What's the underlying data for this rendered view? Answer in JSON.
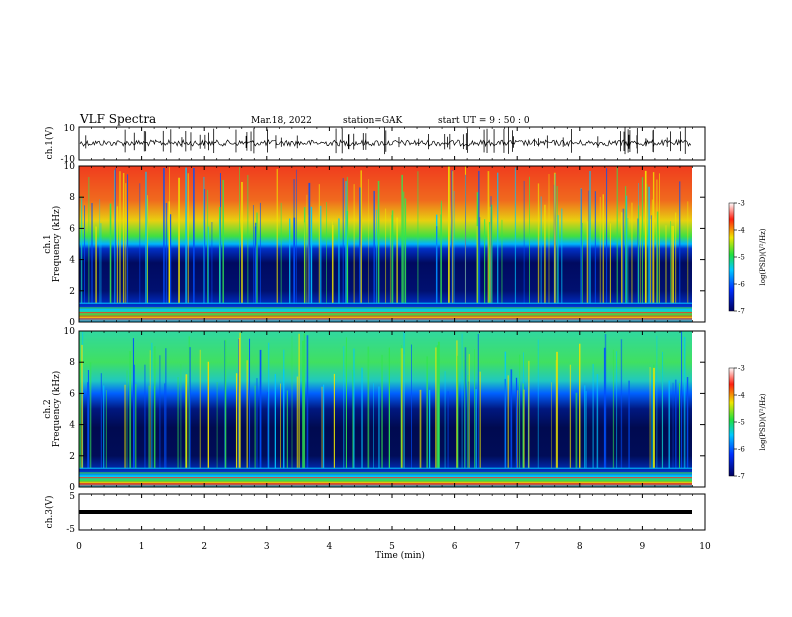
{
  "header": {
    "title": "VLF Spectra",
    "date": "Mar.18, 2022",
    "station": "station=GAK",
    "start_ut": "start UT =  9 : 50 : 0"
  },
  "chart_data": [
    {
      "type": "line",
      "panel": "ch1-waveform",
      "ylabel": "ch.1(V)",
      "ylim": [
        -10,
        10
      ],
      "ytick_labels": [
        "10",
        "-10"
      ],
      "xlim": [
        0,
        10
      ]
    },
    {
      "type": "heatmap",
      "panel": "ch1-spectrogram",
      "ylabel_top": "ch.1",
      "ylabel": "Frequency (kHz)",
      "ylim": [
        0,
        10
      ],
      "ytick_labels": [
        "0",
        "2",
        "4",
        "6",
        "8",
        "10"
      ],
      "xlim": [
        0,
        10
      ],
      "colorbar": {
        "label": "log(PSD)(V²/Hz)",
        "range": [
          -7,
          -3
        ],
        "tick_labels": [
          "-3",
          "-4",
          "-5",
          "-6",
          "-7"
        ]
      }
    },
    {
      "type": "heatmap",
      "panel": "ch2-spectrogram",
      "ylabel_top": "ch.2",
      "ylabel": "Frequency (kHz)",
      "ylim": [
        0,
        10
      ],
      "ytick_labels": [
        "0",
        "2",
        "4",
        "6",
        "8",
        "10"
      ],
      "xlim": [
        0,
        10
      ],
      "colorbar": {
        "label": "log(PSD)(V²/Hz)",
        "range": [
          -7,
          -3
        ],
        "tick_labels": [
          "-3",
          "-4",
          "-5",
          "-6",
          "-7"
        ]
      }
    },
    {
      "type": "line",
      "panel": "ch3-waveform",
      "ylabel": "ch.3(V)",
      "ylim": [
        -5,
        5
      ],
      "ytick_labels": [
        "5",
        "-5"
      ],
      "xlim": [
        0,
        10
      ],
      "level": 0
    }
  ],
  "xaxis": {
    "label": "Time (min)",
    "tick_labels": [
      "0",
      "1",
      "2",
      "3",
      "4",
      "5",
      "6",
      "7",
      "8",
      "9",
      "10"
    ]
  },
  "colors": {
    "dark_blue": "#00003c",
    "blue": "#0050ff",
    "cyan": "#00c8ff",
    "green": "#32e650",
    "yellow": "#f0e600",
    "red": "#f03c1e"
  }
}
